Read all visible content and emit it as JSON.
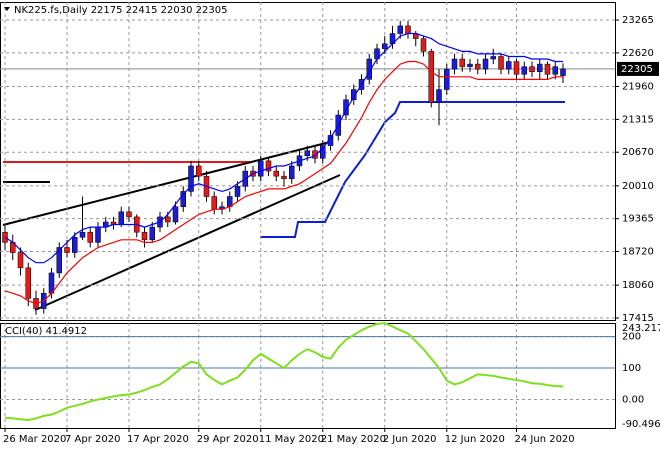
{
  "chart_data": [
    {
      "type": "candlestick",
      "title": "NK225.fs,Daily  22175 22415 22030 22305",
      "categories": [
        "26 Mar 2020",
        null,
        null,
        null,
        null,
        null,
        null,
        null,
        "7 Apr 2020",
        null,
        null,
        null,
        null,
        null,
        null,
        null,
        "17 Apr 2020",
        null,
        null,
        null,
        null,
        null,
        null,
        null,
        null,
        "29 Apr 2020",
        null,
        null,
        null,
        null,
        null,
        null,
        null,
        "11 May 2020",
        null,
        null,
        null,
        null,
        null,
        null,
        null,
        "21 May 2020",
        null,
        null,
        null,
        null,
        null,
        null,
        null,
        "2 Jun 2020",
        null,
        null,
        null,
        null,
        null,
        null,
        null,
        "12 Jun 2020",
        null,
        null,
        null,
        null,
        null,
        null,
        null,
        null,
        "24 Jun 2020",
        null,
        null,
        null,
        null,
        null,
        null
      ],
      "open": [
        19100,
        18900,
        18700,
        18400,
        17800,
        17600,
        17900,
        18300,
        18800,
        18700,
        19000,
        19100,
        18900,
        19200,
        19300,
        19250,
        19500,
        19400,
        19100,
        18950,
        19200,
        19400,
        19300,
        19600,
        19900,
        20400,
        20200,
        19800,
        19550,
        19600,
        19800,
        20000,
        20300,
        20200,
        20500,
        20300,
        20200,
        20150,
        20400,
        20600,
        20700,
        20550,
        20800,
        21000,
        21400,
        21700,
        21900,
        22100,
        22500,
        22700,
        22800,
        23000,
        23150,
        23000,
        22900,
        22650,
        21650,
        21900,
        22300,
        22500,
        22350,
        22400,
        22300,
        22500,
        22550,
        22300,
        22450,
        22200,
        22350,
        22250,
        22400,
        22200,
        22175
      ],
      "high": [
        19250,
        19050,
        18800,
        18500,
        17950,
        18000,
        18400,
        18900,
        18950,
        19100,
        19800,
        19200,
        19300,
        19400,
        19400,
        19600,
        19600,
        19450,
        19200,
        19300,
        19500,
        19500,
        19700,
        20000,
        20500,
        20500,
        20300,
        19900,
        19700,
        19900,
        20100,
        20400,
        20400,
        20600,
        20550,
        20400,
        20300,
        20500,
        20700,
        20800,
        20800,
        20900,
        21100,
        21500,
        21800,
        22000,
        22200,
        22600,
        22800,
        22950,
        23150,
        23250,
        23250,
        23050,
        22950,
        22700,
        22300,
        22400,
        22600,
        22600,
        22500,
        22500,
        22600,
        22700,
        22600,
        22550,
        22500,
        22450,
        22450,
        22500,
        22450,
        22450,
        22415
      ],
      "low": [
        18750,
        18550,
        18250,
        17650,
        17480,
        17500,
        17800,
        18200,
        18600,
        18600,
        18950,
        18800,
        18800,
        19100,
        19150,
        19200,
        19300,
        19000,
        18800,
        18900,
        19100,
        19200,
        19250,
        19500,
        19800,
        20100,
        19700,
        19450,
        19450,
        19500,
        19700,
        19900,
        20100,
        20100,
        20200,
        20100,
        20000,
        20050,
        20300,
        20500,
        20450,
        20450,
        20700,
        20900,
        21300,
        21600,
        21800,
        22000,
        22400,
        22600,
        22700,
        22900,
        22900,
        22750,
        22550,
        21550,
        21200,
        21800,
        22200,
        22250,
        22250,
        22200,
        22200,
        22400,
        22200,
        22200,
        22100,
        22100,
        22150,
        22100,
        22100,
        22100,
        22030
      ],
      "close": [
        18900,
        18700,
        18400,
        17800,
        17600,
        17900,
        18300,
        18800,
        18700,
        19000,
        19100,
        18900,
        19200,
        19300,
        19250,
        19500,
        19400,
        19100,
        18950,
        19200,
        19400,
        19300,
        19600,
        19900,
        20400,
        20200,
        19800,
        19550,
        19600,
        19800,
        20000,
        20300,
        20200,
        20500,
        20300,
        20200,
        20150,
        20400,
        20600,
        20700,
        20550,
        20800,
        21000,
        21400,
        21700,
        21900,
        22100,
        22500,
        22700,
        22800,
        23000,
        23150,
        23000,
        22900,
        22650,
        21650,
        21900,
        22300,
        22500,
        22350,
        22400,
        22300,
        22500,
        22550,
        22300,
        22450,
        22200,
        22350,
        22250,
        22400,
        22200,
        22350,
        22305
      ],
      "up_color": "#1c1cd6",
      "down_color": "#e01b1b",
      "series": [
        {
          "color": "#0000ff",
          "values": [
            19000,
            18900,
            18750,
            18600,
            18500,
            18500,
            18600,
            18750,
            18900,
            19050,
            19150,
            19200,
            19200,
            19200,
            19250,
            19250,
            19250,
            19250,
            19200,
            19250,
            19300,
            19450,
            19650,
            19850,
            20000,
            20050,
            20000,
            19950,
            19900,
            19950,
            20050,
            20150,
            20250,
            20300,
            20350,
            20400,
            20400,
            20450,
            20500,
            20550,
            20600,
            20750,
            20950,
            21200,
            21500,
            21750,
            22000,
            22250,
            22500,
            22650,
            22800,
            22950,
            23000,
            23000,
            22950,
            22900,
            22800,
            22750,
            22700,
            22650,
            22650,
            22600,
            22600,
            22600,
            22600,
            22550,
            22550,
            22550,
            22500,
            22500,
            22500,
            22450,
            22450
          ]
        },
        {
          "color": "#ff0000",
          "values": [
            17950,
            17900,
            17850,
            17750,
            17700,
            17750,
            17900,
            18100,
            18300,
            18450,
            18600,
            18700,
            18800,
            18850,
            18900,
            18950,
            18950,
            18950,
            18900,
            18900,
            18950,
            19050,
            19150,
            19250,
            19350,
            19450,
            19500,
            19550,
            19550,
            19600,
            19700,
            19800,
            19850,
            19900,
            19950,
            19950,
            19950,
            20000,
            20050,
            20150,
            20250,
            20350,
            20450,
            20650,
            20850,
            21100,
            21350,
            21650,
            21900,
            22100,
            22250,
            22400,
            22450,
            22450,
            22400,
            22250,
            22150,
            22150,
            22150,
            22150,
            22150,
            22100,
            22100,
            22100,
            22100,
            22100,
            22100,
            22100,
            22100,
            22100,
            22100,
            22150,
            22150
          ]
        }
      ],
      "ylim": [
        17376,
        23619
      ],
      "yticks": [
        17415,
        18060,
        18720,
        19365,
        20010,
        20670,
        21315,
        21960,
        22620,
        23265
      ],
      "grid": true
    },
    {
      "type": "line",
      "title": "CCI(40) 41.4912",
      "color": "#7ee01e",
      "values": [
        -58,
        -60,
        -63,
        -65,
        -60,
        -52,
        -48,
        -38,
        -26,
        -20,
        -14,
        -6,
        0,
        5,
        10,
        14,
        16,
        22,
        30,
        40,
        48,
        65,
        85,
        105,
        120,
        115,
        80,
        62,
        48,
        60,
        70,
        95,
        125,
        145,
        130,
        115,
        100,
        125,
        145,
        160,
        150,
        135,
        130,
        165,
        190,
        205,
        220,
        232,
        240,
        243,
        232,
        220,
        210,
        185,
        160,
        130,
        100,
        60,
        48,
        55,
        68,
        80,
        78,
        75,
        70,
        66,
        62,
        58,
        52,
        50,
        46,
        43,
        41.4912
      ],
      "ylim": [
        -90.4964,
        243.2176
      ],
      "yticks": [
        -90.4964,
        {
          "value": 0,
          "label": "0.00"
        },
        100,
        200,
        243.2176
      ],
      "levels": [
        100,
        200
      ],
      "grid": true
    }
  ]
}
